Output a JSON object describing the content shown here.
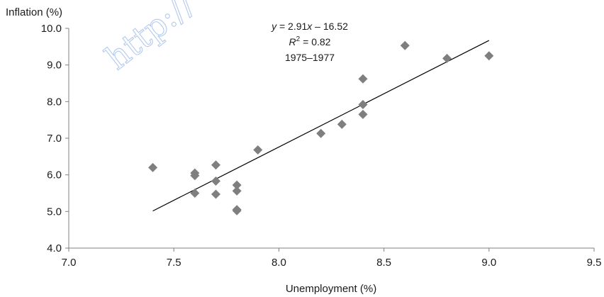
{
  "chart_data": {
    "type": "scatter",
    "ylabel": "Inflation (%)",
    "xlabel": "Unemployment (%)",
    "xlim": [
      7.0,
      9.5
    ],
    "ylim": [
      4.0,
      10.0
    ],
    "x_ticks": [
      "7.0",
      "7.5",
      "8.0",
      "8.5",
      "9.0",
      "9.5"
    ],
    "y_ticks": [
      "4.0",
      "5.0",
      "6.0",
      "7.0",
      "8.0",
      "9.0",
      "10.0"
    ],
    "grid": false,
    "marker": "diamond",
    "marker_color": "#7f7f7f",
    "series": [
      {
        "points": [
          {
            "x": 7.4,
            "y": 6.2
          },
          {
            "x": 7.6,
            "y": 6.05
          },
          {
            "x": 7.6,
            "y": 5.98
          },
          {
            "x": 7.6,
            "y": 5.5
          },
          {
            "x": 7.7,
            "y": 6.27
          },
          {
            "x": 7.7,
            "y": 5.83
          },
          {
            "x": 7.7,
            "y": 5.47
          },
          {
            "x": 7.8,
            "y": 5.72
          },
          {
            "x": 7.8,
            "y": 5.56
          },
          {
            "x": 7.8,
            "y": 5.05
          },
          {
            "x": 7.8,
            "y": 5.02
          },
          {
            "x": 7.9,
            "y": 6.68
          },
          {
            "x": 8.2,
            "y": 7.13
          },
          {
            "x": 8.3,
            "y": 7.38
          },
          {
            "x": 8.4,
            "y": 8.62
          },
          {
            "x": 8.4,
            "y": 7.92
          },
          {
            "x": 8.4,
            "y": 7.65
          },
          {
            "x": 8.6,
            "y": 9.53
          },
          {
            "x": 8.8,
            "y": 9.18
          },
          {
            "x": 9.0,
            "y": 9.25
          }
        ]
      }
    ],
    "trendline": {
      "slope": 2.91,
      "intercept": -16.52,
      "x_range": [
        7.4,
        9.0
      ],
      "color": "#000000"
    },
    "annotation": {
      "equation_lhs": "y",
      "equation_rhs": " = 2.91",
      "equation_var": "x",
      "equation_tail": " – 16.52",
      "r2_label": "R",
      "r2_sup": "2",
      "r2_value": " = 0.82",
      "period": "1975–1977"
    }
  },
  "watermark": "http://"
}
